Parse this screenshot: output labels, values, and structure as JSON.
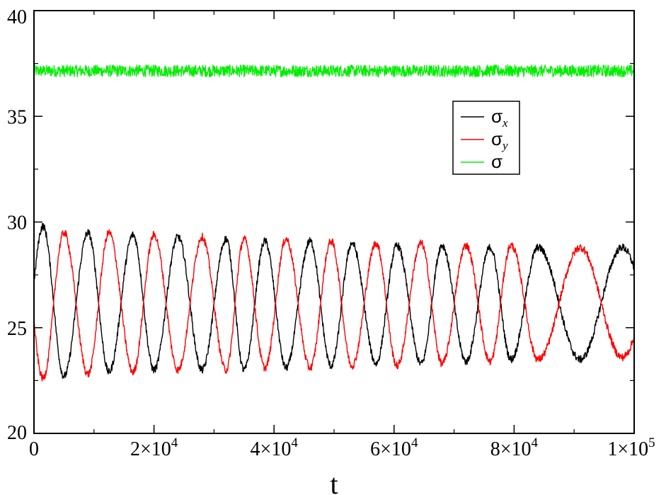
{
  "chart_data": {
    "type": "line",
    "xlabel": "t",
    "ylabel": "",
    "xlim": [
      0,
      100000
    ],
    "ylim": [
      20,
      40
    ],
    "x_ticks": [
      {
        "value": 0,
        "mantissa": "0",
        "exponent": ""
      },
      {
        "value": 20000,
        "mantissa": "2×10",
        "exponent": "4"
      },
      {
        "value": 40000,
        "mantissa": "4×10",
        "exponent": "4"
      },
      {
        "value": 60000,
        "mantissa": "6×10",
        "exponent": "4"
      },
      {
        "value": 80000,
        "mantissa": "8×10",
        "exponent": "4"
      },
      {
        "value": 100000,
        "mantissa": "1×10",
        "exponent": "5"
      }
    ],
    "y_ticks": [
      {
        "value": 20,
        "label": "20"
      },
      {
        "value": 25,
        "label": "25"
      },
      {
        "value": 30,
        "label": "30"
      },
      {
        "value": 35,
        "label": "35"
      },
      {
        "value": 40,
        "label": "40"
      }
    ],
    "grid": false,
    "legend_position": "upper-right",
    "series": [
      {
        "name": "σ",
        "subscript": "x",
        "color": "#000000",
        "mean": 26.1,
        "noise": 0.18,
        "peaks_t": [
          1500,
          9000,
          16500,
          24000,
          32000,
          38500,
          46000,
          53000,
          60500,
          68000,
          76000,
          84000,
          98000
        ],
        "peaks_y": [
          29.8,
          29.5,
          29.4,
          29.3,
          29.2,
          29.1,
          29.1,
          29.0,
          28.9,
          28.9,
          28.8,
          28.8,
          28.8
        ],
        "troughs_t": [
          5000,
          12500,
          20000,
          28000,
          35000,
          42000,
          49500,
          57000,
          64500,
          72000,
          79500,
          91000
        ],
        "troughs_y": [
          22.7,
          22.9,
          23.0,
          23.0,
          23.0,
          23.1,
          23.2,
          23.3,
          23.3,
          23.4,
          23.5,
          23.5
        ]
      },
      {
        "name": "σ",
        "subscript": "y",
        "color": "#ff0000",
        "mean": 26.1,
        "noise": 0.18,
        "peaks_t": [
          5000,
          12500,
          20000,
          28000,
          35000,
          42000,
          49500,
          57000,
          64500,
          72000,
          79500,
          91000
        ],
        "peaks_y": [
          29.5,
          29.5,
          29.4,
          29.3,
          29.2,
          29.2,
          29.1,
          29.0,
          29.0,
          28.9,
          28.9,
          28.8
        ],
        "troughs_t": [
          1500,
          9000,
          16500,
          24000,
          32000,
          38500,
          46000,
          53000,
          60500,
          68000,
          76000,
          84000,
          98000
        ],
        "troughs_y": [
          22.6,
          22.8,
          22.9,
          23.0,
          23.0,
          23.1,
          23.1,
          23.2,
          23.2,
          23.3,
          23.4,
          23.5,
          23.6
        ]
      },
      {
        "name": "σ",
        "subscript": "",
        "color": "#00ee00",
        "constant": 37.15,
        "noise": 0.28
      }
    ]
  }
}
